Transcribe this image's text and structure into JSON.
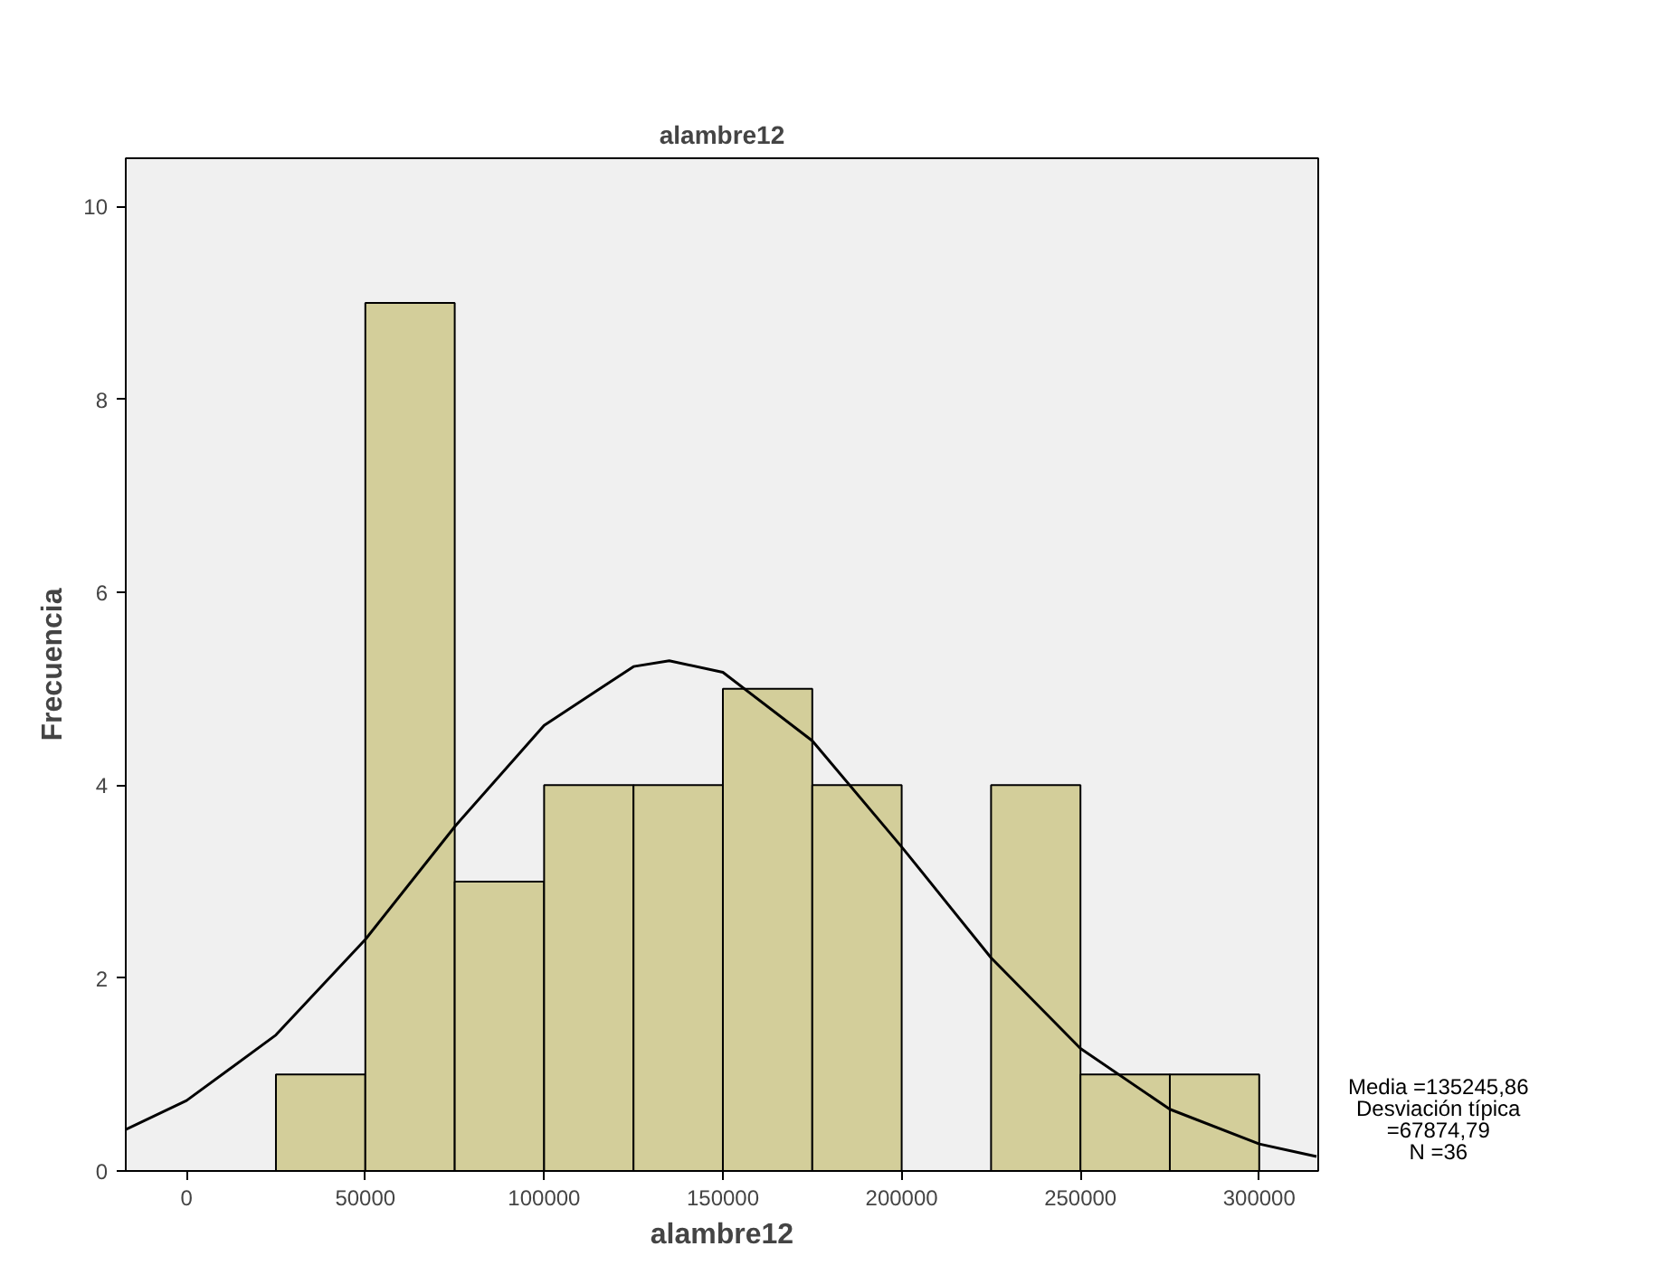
{
  "chart_data": {
    "type": "histogram",
    "title": "alambre12",
    "xlabel": "alambre12",
    "ylabel": "Frecuencia",
    "bins": [
      25000,
      50000,
      75000,
      100000,
      125000,
      150000,
      175000,
      200000,
      225000,
      250000,
      275000,
      300000
    ],
    "values": [
      1,
      9,
      3,
      4,
      4,
      5,
      4,
      0,
      4,
      1,
      1
    ],
    "color": "#d3ce9a",
    "series": [
      {
        "type": "line",
        "color": "#000000",
        "x": [
          -17000,
          0,
          25000,
          50000,
          75000,
          100000,
          125000,
          135000,
          150000,
          175000,
          200000,
          225000,
          250000,
          275000,
          300000,
          316000
        ],
        "values": [
          0.43,
          0.73,
          1.41,
          2.4,
          3.57,
          4.62,
          5.23,
          5.29,
          5.17,
          4.46,
          3.36,
          2.21,
          1.27,
          0.64,
          0.28,
          0.15
        ]
      }
    ],
    "xlim": [
      -17000,
      316500
    ],
    "ylim": [
      0,
      10.5
    ],
    "xticks": [
      0,
      50000,
      100000,
      150000,
      200000,
      250000,
      300000
    ],
    "yticks": [
      0,
      2,
      4,
      6,
      8,
      10
    ],
    "grid": false,
    "annotations": [
      "Media =135245,86",
      "Desviación típica",
      "=67874,79",
      "N =36"
    ]
  }
}
